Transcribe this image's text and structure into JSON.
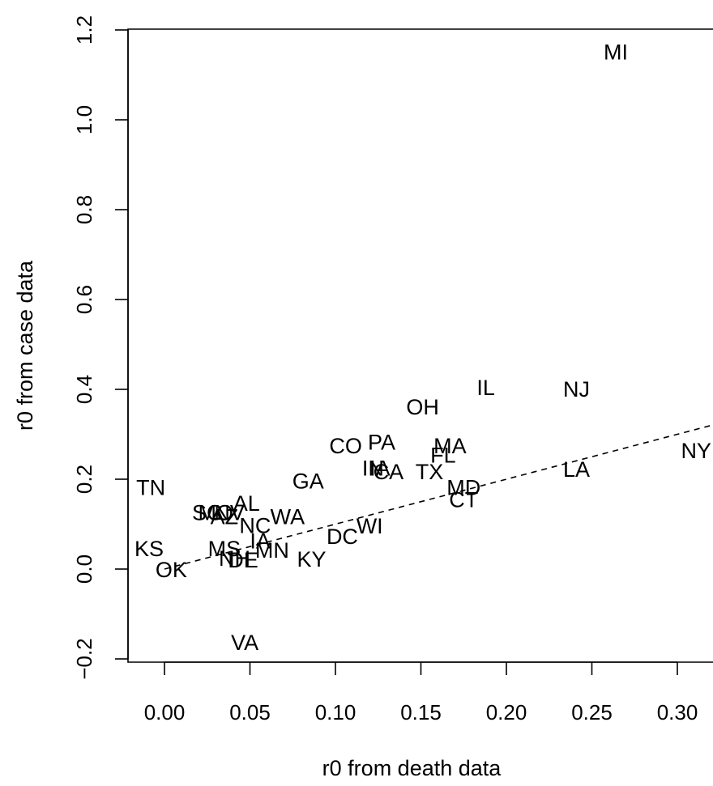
{
  "chart_data": {
    "type": "scatter",
    "title": "",
    "xlabel": "r0 from death data",
    "ylabel": "r0 from case data",
    "xlim": [
      -0.022,
      0.32
    ],
    "ylim": [
      -0.21,
      1.2
    ],
    "xticks": [
      0.0,
      0.05,
      0.1,
      0.15,
      0.2,
      0.25,
      0.3
    ],
    "xtick_labels": [
      "0.00",
      "0.05",
      "0.10",
      "0.15",
      "0.20",
      "0.25",
      "0.30"
    ],
    "yticks": [
      -0.2,
      0.0,
      0.2,
      0.4,
      0.6,
      0.8,
      1.0,
      1.2
    ],
    "ytick_labels": [
      "−0.2",
      "0.0",
      "0.2",
      "0.4",
      "0.6",
      "0.8",
      "1.0",
      "1.2"
    ],
    "grid": false,
    "legend": false,
    "marker": "text-label",
    "points": [
      {
        "label": "MI",
        "x": 0.264,
        "y": 1.152
      },
      {
        "label": "IL",
        "x": 0.188,
        "y": 0.405
      },
      {
        "label": "NJ",
        "x": 0.241,
        "y": 0.402
      },
      {
        "label": "OH",
        "x": 0.151,
        "y": 0.362
      },
      {
        "label": "NY",
        "x": 0.311,
        "y": 0.265
      },
      {
        "label": "CO",
        "x": 0.106,
        "y": 0.276
      },
      {
        "label": "PA",
        "x": 0.127,
        "y": 0.284
      },
      {
        "label": "MA",
        "x": 0.167,
        "y": 0.276
      },
      {
        "label": "FL",
        "x": 0.163,
        "y": 0.255
      },
      {
        "label": "IN",
        "x": 0.122,
        "y": 0.226
      },
      {
        "label": "IA",
        "x": 0.126,
        "y": 0.226
      },
      {
        "label": "CA",
        "x": 0.131,
        "y": 0.218
      },
      {
        "label": "TX",
        "x": 0.155,
        "y": 0.218
      },
      {
        "label": "LA",
        "x": 0.241,
        "y": 0.223
      },
      {
        "label": "TN",
        "x": -0.008,
        "y": 0.183
      },
      {
        "label": "GA",
        "x": 0.084,
        "y": 0.197
      },
      {
        "label": "MD",
        "x": 0.175,
        "y": 0.183
      },
      {
        "label": "CT",
        "x": 0.175,
        "y": 0.156
      },
      {
        "label": "AL",
        "x": 0.048,
        "y": 0.148
      },
      {
        "label": "SC",
        "x": 0.025,
        "y": 0.127
      },
      {
        "label": "MO",
        "x": 0.03,
        "y": 0.127
      },
      {
        "label": "AZ",
        "x": 0.035,
        "y": 0.118
      },
      {
        "label": "NV",
        "x": 0.038,
        "y": 0.127
      },
      {
        "label": "NC",
        "x": 0.053,
        "y": 0.098
      },
      {
        "label": "WA",
        "x": 0.072,
        "y": 0.118
      },
      {
        "label": "WI",
        "x": 0.12,
        "y": 0.097
      },
      {
        "label": "DC",
        "x": 0.104,
        "y": 0.074
      },
      {
        "label": "KS",
        "x": -0.009,
        "y": 0.047
      },
      {
        "label": "MS",
        "x": 0.035,
        "y": 0.047
      },
      {
        "label": "IA",
        "x": 0.056,
        "y": 0.064
      },
      {
        "label": "NH",
        "x": 0.041,
        "y": 0.025
      },
      {
        "label": "DE",
        "x": 0.046,
        "y": 0.022
      },
      {
        "label": "MN",
        "x": 0.063,
        "y": 0.043
      },
      {
        "label": "KY",
        "x": 0.086,
        "y": 0.023
      },
      {
        "label": "OK",
        "x": 0.004,
        "y": 0.0
      },
      {
        "label": "VA",
        "x": 0.047,
        "y": -0.162
      }
    ],
    "trend_line": {
      "style": "dashed",
      "x": [
        0.0,
        0.32
      ],
      "y": [
        0.0,
        0.32
      ]
    }
  }
}
